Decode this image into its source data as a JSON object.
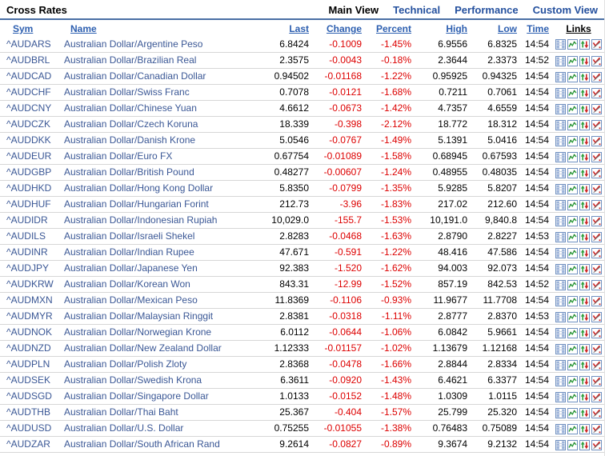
{
  "header": {
    "title": "Cross Rates",
    "views": [
      {
        "label": "Main View",
        "active": true
      },
      {
        "label": "Technical",
        "active": false
      },
      {
        "label": "Performance",
        "active": false
      },
      {
        "label": "Custom View",
        "active": false
      }
    ]
  },
  "table": {
    "columns": [
      "Sym",
      "Name",
      "Last",
      "Change",
      "Percent",
      "High",
      "Low",
      "Time",
      "Links"
    ],
    "link_icons": [
      "quote-icon",
      "chart-icon",
      "technicals-icon",
      "opinion-icon"
    ],
    "rows": [
      {
        "sym": "^AUDARS",
        "name": "Australian Dollar/Argentine Peso",
        "last": "6.8424",
        "change": "-0.1009",
        "percent": "-1.45%",
        "high": "6.9556",
        "low": "6.8325",
        "time": "14:54"
      },
      {
        "sym": "^AUDBRL",
        "name": "Australian Dollar/Brazilian Real",
        "last": "2.3575",
        "change": "-0.0043",
        "percent": "-0.18%",
        "high": "2.3644",
        "low": "2.3373",
        "time": "14:52"
      },
      {
        "sym": "^AUDCAD",
        "name": "Australian Dollar/Canadian Dollar",
        "last": "0.94502",
        "change": "-0.01168",
        "percent": "-1.22%",
        "high": "0.95925",
        "low": "0.94325",
        "time": "14:54"
      },
      {
        "sym": "^AUDCHF",
        "name": "Australian Dollar/Swiss Franc",
        "last": "0.7078",
        "change": "-0.0121",
        "percent": "-1.68%",
        "high": "0.7211",
        "low": "0.7061",
        "time": "14:54"
      },
      {
        "sym": "^AUDCNY",
        "name": "Australian Dollar/Chinese Yuan",
        "last": "4.6612",
        "change": "-0.0673",
        "percent": "-1.42%",
        "high": "4.7357",
        "low": "4.6559",
        "time": "14:54"
      },
      {
        "sym": "^AUDCZK",
        "name": "Australian Dollar/Czech Koruna",
        "last": "18.339",
        "change": "-0.398",
        "percent": "-2.12%",
        "high": "18.772",
        "low": "18.312",
        "time": "14:54"
      },
      {
        "sym": "^AUDDKK",
        "name": "Australian Dollar/Danish Krone",
        "last": "5.0546",
        "change": "-0.0767",
        "percent": "-1.49%",
        "high": "5.1391",
        "low": "5.0416",
        "time": "14:54"
      },
      {
        "sym": "^AUDEUR",
        "name": "Australian Dollar/Euro FX",
        "last": "0.67754",
        "change": "-0.01089",
        "percent": "-1.58%",
        "high": "0.68945",
        "low": "0.67593",
        "time": "14:54"
      },
      {
        "sym": "^AUDGBP",
        "name": "Australian Dollar/British Pound",
        "last": "0.48277",
        "change": "-0.00607",
        "percent": "-1.24%",
        "high": "0.48955",
        "low": "0.48035",
        "time": "14:54"
      },
      {
        "sym": "^AUDHKD",
        "name": "Australian Dollar/Hong Kong Dollar",
        "last": "5.8350",
        "change": "-0.0799",
        "percent": "-1.35%",
        "high": "5.9285",
        "low": "5.8207",
        "time": "14:54"
      },
      {
        "sym": "^AUDHUF",
        "name": "Australian Dollar/Hungarian Forint",
        "last": "212.73",
        "change": "-3.96",
        "percent": "-1.83%",
        "high": "217.02",
        "low": "212.60",
        "time": "14:54"
      },
      {
        "sym": "^AUDIDR",
        "name": "Australian Dollar/Indonesian Rupiah",
        "last": "10,029.0",
        "change": "-155.7",
        "percent": "-1.53%",
        "high": "10,191.0",
        "low": "9,840.8",
        "time": "14:54"
      },
      {
        "sym": "^AUDILS",
        "name": "Australian Dollar/Israeli Shekel",
        "last": "2.8283",
        "change": "-0.0468",
        "percent": "-1.63%",
        "high": "2.8790",
        "low": "2.8227",
        "time": "14:53"
      },
      {
        "sym": "^AUDINR",
        "name": "Australian Dollar/Indian Rupee",
        "last": "47.671",
        "change": "-0.591",
        "percent": "-1.22%",
        "high": "48.416",
        "low": "47.586",
        "time": "14:54"
      },
      {
        "sym": "^AUDJPY",
        "name": "Australian Dollar/Japanese Yen",
        "last": "92.383",
        "change": "-1.520",
        "percent": "-1.62%",
        "high": "94.003",
        "low": "92.073",
        "time": "14:54"
      },
      {
        "sym": "^AUDKRW",
        "name": "Australian Dollar/Korean Won",
        "last": "843.31",
        "change": "-12.99",
        "percent": "-1.52%",
        "high": "857.19",
        "low": "842.53",
        "time": "14:52"
      },
      {
        "sym": "^AUDMXN",
        "name": "Australian Dollar/Mexican Peso",
        "last": "11.8369",
        "change": "-0.1106",
        "percent": "-0.93%",
        "high": "11.9677",
        "low": "11.7708",
        "time": "14:54"
      },
      {
        "sym": "^AUDMYR",
        "name": "Australian Dollar/Malaysian Ringgit",
        "last": "2.8381",
        "change": "-0.0318",
        "percent": "-1.11%",
        "high": "2.8777",
        "low": "2.8370",
        "time": "14:53"
      },
      {
        "sym": "^AUDNOK",
        "name": "Australian Dollar/Norwegian Krone",
        "last": "6.0112",
        "change": "-0.0644",
        "percent": "-1.06%",
        "high": "6.0842",
        "low": "5.9661",
        "time": "14:54"
      },
      {
        "sym": "^AUDNZD",
        "name": "Australian Dollar/New Zealand Dollar",
        "last": "1.12333",
        "change": "-0.01157",
        "percent": "-1.02%",
        "high": "1.13679",
        "low": "1.12168",
        "time": "14:54"
      },
      {
        "sym": "^AUDPLN",
        "name": "Australian Dollar/Polish Zloty",
        "last": "2.8368",
        "change": "-0.0478",
        "percent": "-1.66%",
        "high": "2.8844",
        "low": "2.8334",
        "time": "14:54"
      },
      {
        "sym": "^AUDSEK",
        "name": "Australian Dollar/Swedish Krona",
        "last": "6.3611",
        "change": "-0.0920",
        "percent": "-1.43%",
        "high": "6.4621",
        "low": "6.3377",
        "time": "14:54"
      },
      {
        "sym": "^AUDSGD",
        "name": "Australian Dollar/Singapore Dollar",
        "last": "1.0133",
        "change": "-0.0152",
        "percent": "-1.48%",
        "high": "1.0309",
        "low": "1.0115",
        "time": "14:54"
      },
      {
        "sym": "^AUDTHB",
        "name": "Australian Dollar/Thai Baht",
        "last": "25.367",
        "change": "-0.404",
        "percent": "-1.57%",
        "high": "25.799",
        "low": "25.320",
        "time": "14:54"
      },
      {
        "sym": "^AUDUSD",
        "name": "Australian Dollar/U.S. Dollar",
        "last": "0.75255",
        "change": "-0.01055",
        "percent": "-1.38%",
        "high": "0.76483",
        "low": "0.75089",
        "time": "14:54"
      },
      {
        "sym": "^AUDZAR",
        "name": "Australian Dollar/South African Rand",
        "last": "9.2614",
        "change": "-0.0827",
        "percent": "-0.89%",
        "high": "9.3674",
        "low": "9.2132",
        "time": "14:54"
      }
    ]
  },
  "colors": {
    "header_link_blue": "#2d5fb0",
    "nav_link_blue": "#24509e",
    "symbol_navy": "#3a5795",
    "negative_red": "#dd0000",
    "row_separator": "#d6d6d6",
    "title_rule_blue": "#4a6fa5"
  }
}
